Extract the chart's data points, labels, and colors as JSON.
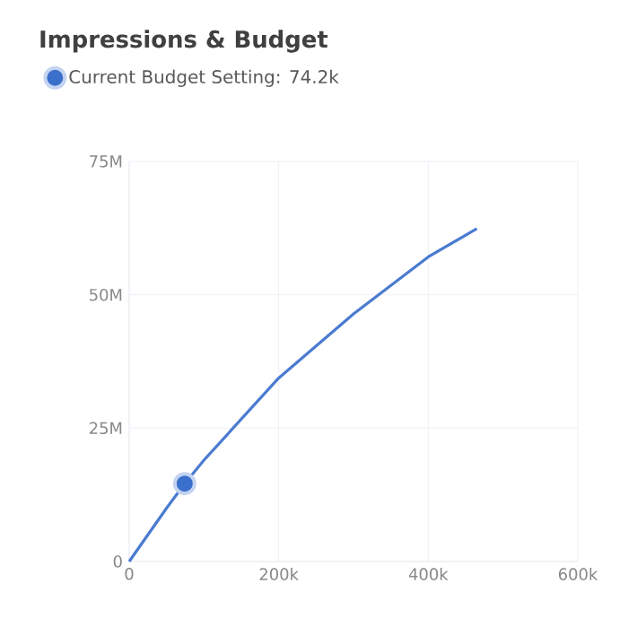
{
  "chart_data": {
    "type": "line",
    "title": "Impressions & Budget",
    "series": [
      {
        "color": "#4a7bd0",
        "marker": "none",
        "x": [
          0,
          50000,
          74200,
          100000,
          200000,
          300000,
          400000,
          465000
        ],
        "values": [
          0,
          10000000,
          14600000,
          19000000,
          34400000,
          46400000,
          57100000,
          62400000
        ]
      },
      {
        "type": "scatter",
        "name": "Current Budget Setting: 74.2k",
        "color": "#3b6fcc",
        "marker": "circle",
        "x": [
          74200
        ],
        "values": [
          14600000
        ]
      }
    ],
    "xlim": [
      0,
      600000
    ],
    "ylim": [
      0,
      75000000
    ],
    "xticks": [
      0,
      {
        "value": 200000,
        "label": "200k"
      },
      {
        "value": 400000,
        "label": "400k"
      },
      {
        "value": 600000,
        "label": "600k"
      }
    ],
    "yticks": [
      0,
      {
        "value": 25000000,
        "label": "25M"
      },
      {
        "value": 50000000,
        "label": "50M"
      },
      {
        "value": 75000000,
        "label": "75M"
      }
    ],
    "grid": true,
    "legend": "top left"
  }
}
